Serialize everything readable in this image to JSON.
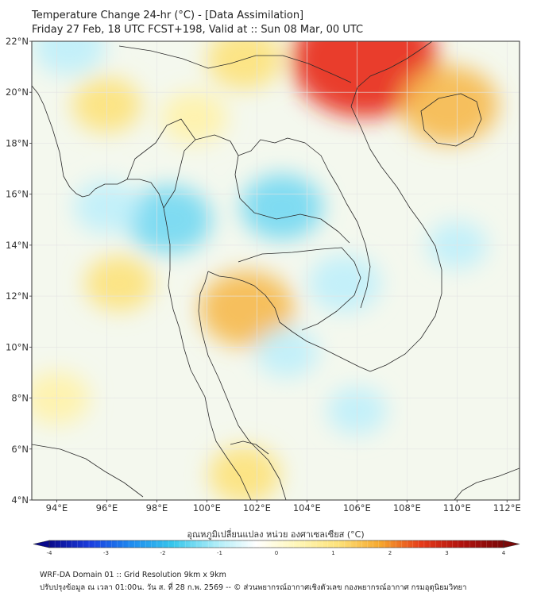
{
  "title": {
    "line1": "Temperature Change 24-hr (°C) - [Data Assimilation]",
    "line2": "Friday 27 Feb, 18 UTC FCST+198, Valid at :: Sun 08 Mar, 00 UTC"
  },
  "map": {
    "region": "Mainland Southeast Asia (Thailand and neighbours)",
    "lat_labels": [
      "22°N",
      "20°N",
      "18°N",
      "16°N",
      "14°N",
      "12°N",
      "10°N",
      "8°N",
      "6°N",
      "4°N"
    ],
    "lon_labels": [
      "94°E",
      "96°E",
      "98°E",
      "100°E",
      "102°E",
      "104°E",
      "106°E",
      "108°E",
      "110°E",
      "112°E"
    ],
    "lat_range": [
      4,
      22
    ],
    "lon_range": [
      93,
      112.5
    ],
    "colors": {
      "neutral": "#f4f8ee",
      "cool_light": "#bfeffb",
      "cool": "#72d8f2",
      "warm_light": "#fff2a8",
      "warm": "#fde27a",
      "hot": "#f6b94c",
      "hottest": "#e8271a",
      "border": "#2a2a2a",
      "grid": "#e4e4e4"
    },
    "anomalies": [
      {
        "lat": 21.3,
        "lon": 106.3,
        "value": 3.2
      },
      {
        "lat": 19.5,
        "lon": 109.7,
        "value": 1.7
      },
      {
        "lat": 11.5,
        "lon": 101.6,
        "value": 1.6
      },
      {
        "lat": 21.3,
        "lon": 101.5,
        "value": 1.0
      },
      {
        "lat": 19.5,
        "lon": 96.0,
        "value": 0.8
      },
      {
        "lat": 19.0,
        "lon": 99.5,
        "value": 0.7
      },
      {
        "lat": 12.5,
        "lon": 96.5,
        "value": 0.8
      },
      {
        "lat": 5.0,
        "lon": 101.5,
        "value": 0.9
      },
      {
        "lat": 8.0,
        "lon": 94.0,
        "value": 0.7
      },
      {
        "lat": 15.0,
        "lon": 98.5,
        "value": -1.3
      },
      {
        "lat": 15.5,
        "lon": 103.0,
        "value": -1.2
      },
      {
        "lat": 12.5,
        "lon": 105.5,
        "value": -0.9
      },
      {
        "lat": 21.8,
        "lon": 94.5,
        "value": -0.9
      },
      {
        "lat": 15.5,
        "lon": 96.0,
        "value": -0.7
      },
      {
        "lat": 9.8,
        "lon": 103.2,
        "value": -0.6
      },
      {
        "lat": 7.5,
        "lon": 106.0,
        "value": -0.5
      },
      {
        "lat": 14.0,
        "lon": 110.0,
        "value": -0.5
      }
    ]
  },
  "colorbar": {
    "title": "อุณหภูมิเปลี่ยนแปลง หน่วย องศาเซลเซียส (°C)",
    "ticks": [
      "-4",
      "-3",
      "-2",
      "-1",
      "0",
      "1",
      "2",
      "3",
      "4"
    ],
    "min": -4,
    "max": 4,
    "stops": [
      "#0a0a8c",
      "#1b3ee0",
      "#1e8cf0",
      "#37c7ec",
      "#a9ecf8",
      "#ffffff",
      "#fff7b8",
      "#fde27a",
      "#f6a82e",
      "#e63b1a",
      "#b0120e",
      "#7a0808"
    ]
  },
  "footer": {
    "line1": "WRF-DA Domain 01 :: Grid Resolution 9km x 9km",
    "line2": "ปรับปรุงข้อมูล ณ เวลา 01:00น. วัน ส. ที่ 28 ก.พ. 2569 -- © ส่วนพยากรณ์อากาศเชิงตัวเลข กองพยากรณ์อากาศ กรมอุตุนิยมวิทยา"
  }
}
